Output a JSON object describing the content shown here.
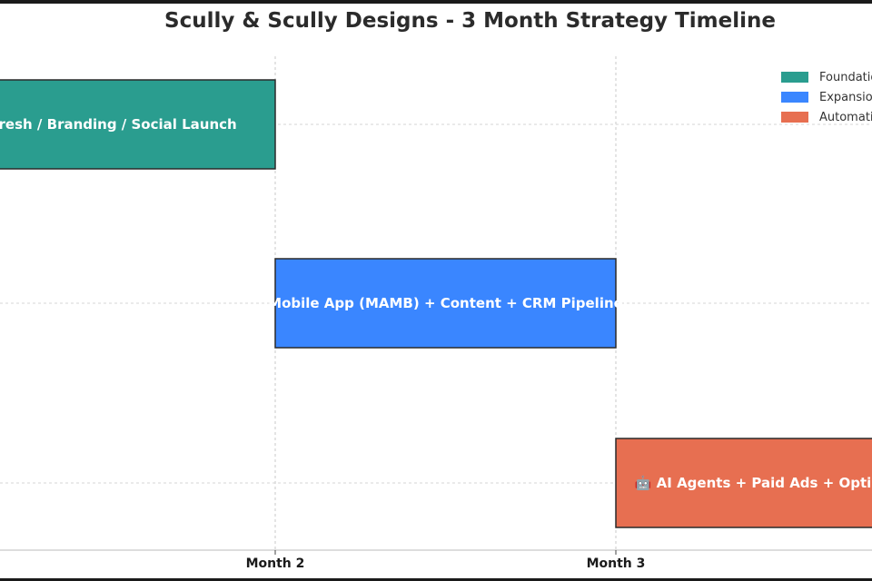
{
  "chart_data": {
    "type": "gantt",
    "title": "Scully & Scully Designs - 3 Month Strategy Timeline",
    "x_ticks": [
      "Month 2",
      "Month 3"
    ],
    "tasks": [
      {
        "label": "Refresh / Branding / Social Launch",
        "start": 0,
        "end": 1,
        "series": "Foundation",
        "color": "#2a9d8f"
      },
      {
        "label": "Mobile App (MAMB) + Content + CRM Pipeline",
        "start": 1,
        "end": 2,
        "series": "Expansion",
        "color": "#3a86ff"
      },
      {
        "label": "🤖 AI Agents + Paid Ads + Optimization",
        "start": 2,
        "end": 3,
        "series": "Automation",
        "color": "#e76f51"
      }
    ],
    "legend": [
      {
        "label": "Foundation",
        "color": "#2a9d8f"
      },
      {
        "label": "Expansion",
        "color": "#3a86ff"
      },
      {
        "label": "Automation",
        "color": "#e76f51"
      }
    ],
    "legend_position": "top-right",
    "grid": true
  }
}
